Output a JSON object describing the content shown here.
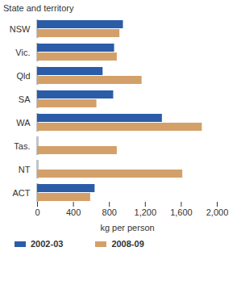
{
  "chart_data": {
    "type": "bar",
    "orientation": "horizontal",
    "y_label": "State and territory",
    "x_label": "kg per person",
    "categories": [
      "NSW",
      "Vic.",
      "Qld",
      "SA",
      "WA",
      "Tas.",
      "NT",
      "ACT"
    ],
    "series": [
      {
        "name": "2002-03",
        "color": "#2b5ca8",
        "values": [
          955,
          857,
          729,
          847,
          1389,
          null,
          null,
          640
        ]
      },
      {
        "name": "2008-09",
        "color": "#d4a06a",
        "values": [
          916,
          887,
          1163,
          660,
          1833,
          887,
          1616,
          591
        ]
      }
    ],
    "xlim": [
      0,
      2000
    ],
    "xticks": [
      0,
      400,
      800,
      {
        "value": 1200,
        "label": "1,200"
      },
      {
        "value": 1600,
        "label": "1,600"
      },
      {
        "value": 2000,
        "label": "2,000"
      }
    ],
    "grid": false,
    "legend": "bottom"
  }
}
